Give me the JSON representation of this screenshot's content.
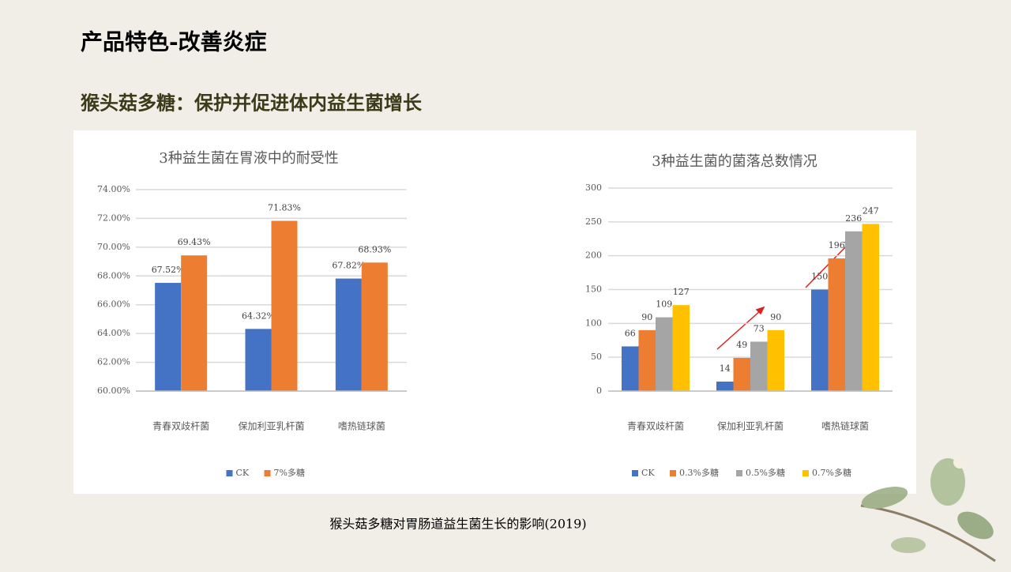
{
  "slide": {
    "title": "产品特色-改善炎症",
    "subtitle": "猴头菇多糖：保护并促进体内益生菌增长",
    "caption": "猴头菇多糖对胃肠道益生菌生长的影响(2019)"
  },
  "chart_data": [
    {
      "type": "bar",
      "title": "3种益生菌在胃液中的耐受性",
      "categories": [
        "青春双歧杆菌",
        "保加利亚乳杆菌",
        "嗜热链球菌"
      ],
      "series": [
        {
          "name": "CK",
          "color": "#4472c4",
          "values": [
            67.52,
            64.32,
            67.82
          ],
          "value_labels": [
            "67.52%",
            "64.32%",
            "67.82%"
          ]
        },
        {
          "name": "7%多糖",
          "color": "#ed7d31",
          "values": [
            69.43,
            71.83,
            68.93
          ],
          "value_labels": [
            "69.43%",
            "71.83%",
            "68.93%"
          ]
        }
      ],
      "ylim": [
        60,
        74
      ],
      "yticks": [
        {
          "value": 60,
          "label": "60.00%"
        },
        {
          "value": 62,
          "label": "62.00%"
        },
        {
          "value": 64,
          "label": "64.00%"
        },
        {
          "value": 66,
          "label": "66.00%"
        },
        {
          "value": 68,
          "label": "68.00%"
        },
        {
          "value": 70,
          "label": "70.00%"
        },
        {
          "value": 72,
          "label": "72.00%"
        },
        {
          "value": 74,
          "label": "74.00%"
        }
      ],
      "grid": true,
      "legend": "bottom"
    },
    {
      "type": "bar",
      "title": "3种益生菌的菌落总数情况",
      "categories": [
        "青春双歧杆菌",
        "保加利亚乳杆菌",
        "嗜热链球菌"
      ],
      "series": [
        {
          "name": "CK",
          "color": "#4472c4",
          "values": [
            66,
            14,
            150
          ]
        },
        {
          "name": "0.3%多糖",
          "color": "#ed7d31",
          "values": [
            90,
            49,
            196
          ]
        },
        {
          "name": "0.5%多糖",
          "color": "#a5a5a5",
          "values": [
            109,
            73,
            236
          ]
        },
        {
          "name": "0.7%多糖",
          "color": "#ffc000",
          "values": [
            127,
            90,
            247
          ]
        }
      ],
      "ylim": [
        0,
        300
      ],
      "yticks": [
        0,
        50,
        100,
        150,
        200,
        250,
        300
      ],
      "grid": true,
      "legend": "bottom"
    }
  ]
}
